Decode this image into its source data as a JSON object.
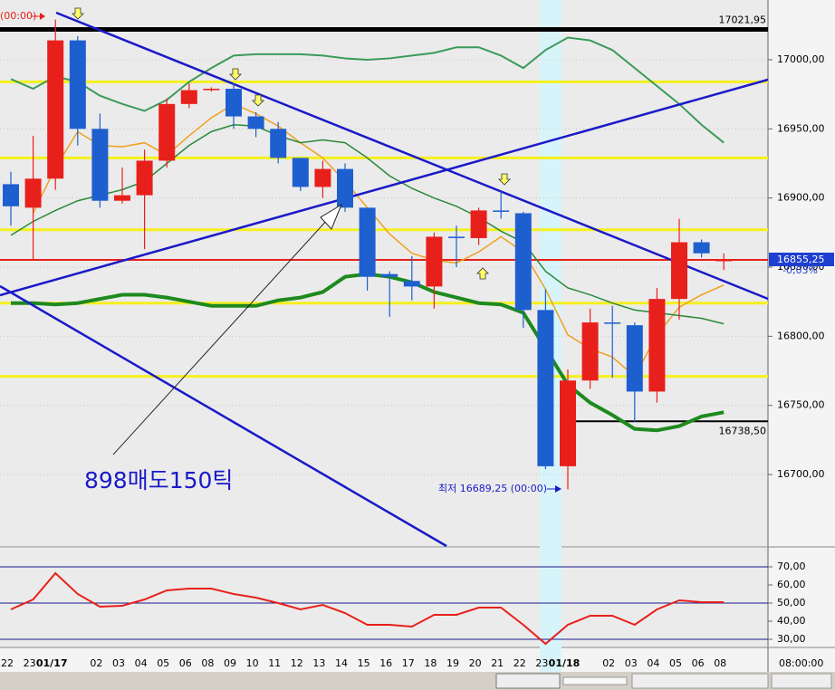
{
  "chart_data": [
    {
      "type": "candlestick",
      "open": [
        16910,
        16893,
        16914,
        17014,
        16950,
        16898,
        16902,
        16927,
        16968,
        16978,
        16979,
        16959,
        16950,
        16929,
        16908,
        16921,
        16893,
        16845,
        16840,
        16836,
        16872,
        16871,
        16891,
        16889,
        16819,
        16706,
        16768,
        16810,
        16808,
        16760,
        16827,
        16868,
        16855
      ],
      "high": [
        16919,
        16945,
        17029,
        17017,
        16961,
        16922,
        16935,
        16972,
        16983,
        16980,
        16983,
        16962,
        16955,
        16929,
        16927,
        16925,
        16893,
        16847,
        16858,
        16875,
        16880,
        16893,
        16905,
        16890,
        16834,
        16776,
        16820,
        16822,
        16810,
        16835,
        16885,
        16870,
        16860
      ],
      "low": [
        16880,
        16855,
        16906,
        16938,
        16893,
        16896,
        16863,
        16922,
        16965,
        16977,
        16950,
        16944,
        16925,
        16905,
        16900,
        16890,
        16833,
        16814,
        16826,
        16820,
        16850,
        16866,
        16885,
        16806,
        16704,
        16689.25,
        16762,
        16770,
        16738,
        16752,
        16812,
        16857,
        16848
      ],
      "close": [
        16894,
        16914,
        17014,
        16950,
        16898,
        16902,
        16927,
        16968,
        16978,
        16979,
        16959,
        16950,
        16929,
        16908,
        16921,
        16893,
        16843,
        16843,
        16836,
        16872,
        16871,
        16891,
        16890,
        16819,
        16706,
        16768,
        16810,
        16809,
        16760,
        16827,
        16868,
        16860,
        16855.25
      ],
      "up_color": "#e8201b",
      "down_color": "#1e5fcf",
      "overlays": [
        {
          "color": "#f0a020",
          "width": 1.5,
          "values": [
            null,
            16889,
            16922,
            16948,
            16938,
            16937,
            16940,
            16931,
            16945,
            16958,
            16968,
            16961,
            16952,
            16940,
            16929,
            16912,
            16893,
            16874,
            16860,
            16855,
            16853,
            16861,
            16872,
            16861,
            16834,
            16801,
            16791,
            16785,
            16771,
            16801,
            16821,
            16830,
            16837
          ]
        },
        {
          "color": "#3a9a5a",
          "width": 2,
          "values": [
            16986,
            16979,
            16988,
            16984,
            16974,
            16968,
            16963,
            16971,
            16984,
            16994,
            17003,
            17004,
            17004,
            17004,
            17003,
            17001,
            17000,
            17001,
            17003,
            17005,
            17009,
            17009,
            17003,
            16994,
            17007,
            17016,
            17014,
            17007,
            16994,
            16981,
            16968,
            16953,
            16940
          ]
        },
        {
          "color": "#2a8a3a",
          "width": 1.5,
          "values": [
            16873,
            16883,
            16891,
            16898,
            16902,
            16906,
            16912,
            16925,
            16938,
            16948,
            16953,
            16952,
            16945,
            16940,
            16942,
            16940,
            16929,
            16916,
            16907,
            16900,
            16894,
            16886,
            16876,
            16868,
            16847,
            16835,
            16830,
            16824,
            16819,
            16817,
            16815,
            16813,
            16809
          ]
        },
        {
          "color": "#1e8a1e",
          "width": 4,
          "values": [
            16824,
            16824,
            16823,
            16824,
            16827,
            16830,
            16830,
            16828,
            16825,
            16822,
            16822,
            16822,
            16826,
            16828,
            16832,
            16843,
            16845,
            16843,
            16839,
            16832,
            16828,
            16824,
            16823,
            16817,
            16791,
            16765,
            16752,
            16743,
            16733,
            16732,
            16735,
            16742,
            16745
          ]
        }
      ],
      "levels": [
        16984,
        16929,
        16877,
        16824,
        16771
      ],
      "level_color": "#f5f01e",
      "price_lines": [
        {
          "value": 17021.95,
          "label": "17021,95",
          "color": "#000000"
        },
        {
          "value": 16855.25,
          "label": "16855,25",
          "change": "-0,03%",
          "color": "#e8201b"
        },
        {
          "value": 16738.5,
          "label": "16738,50",
          "color": "#000000"
        }
      ],
      "ylim": [
        16648.3,
        17043.2
      ],
      "yticks": [
        {
          "value": 16700,
          "label": "16700,00"
        },
        {
          "value": 16750,
          "label": "16750,00"
        },
        {
          "value": 16800,
          "label": "16800,00"
        },
        {
          "value": 16850,
          "label": "16850,00"
        },
        {
          "value": 16900,
          "label": "16900,00"
        },
        {
          "value": 16950,
          "label": "16950,00"
        },
        {
          "value": 17000,
          "label": "17000,00"
        }
      ],
      "grid": true,
      "note": "898매도150틱",
      "low_note": "최저 16689,25 (00:00)",
      "time_note": "(00:00)"
    },
    {
      "type": "line",
      "categories": [
        "22",
        "23",
        "01/17",
        null,
        "02",
        "03",
        "04",
        "05",
        "06",
        "08",
        "09",
        "10",
        "11",
        "12",
        "13",
        "14",
        "15",
        "16",
        "17",
        "18",
        "19",
        "20",
        "21",
        "22",
        "23",
        "01/18",
        null,
        "02",
        "03",
        "04",
        "05",
        "06",
        "08"
      ],
      "series": [
        {
          "color": "#e8201b",
          "values": [
            46.5,
            52,
            66.5,
            55,
            48,
            48.5,
            52,
            57,
            58,
            58,
            55,
            53,
            50,
            46.5,
            49,
            44.5,
            38,
            38,
            37,
            43.5,
            43.5,
            47.5,
            47.5,
            38,
            27.5,
            38,
            43,
            43,
            38,
            46.5,
            51.5,
            50.5,
            50.5
          ]
        }
      ],
      "ref_lines": [
        30,
        50,
        70
      ],
      "ref_color": "#1a1a8c",
      "ylim": [
        25.5,
        80.5
      ],
      "yticks": [
        {
          "value": 30,
          "label": "30,00"
        },
        {
          "value": 40,
          "label": "40,00"
        },
        {
          "value": 50,
          "label": "50,00"
        },
        {
          "value": 60,
          "label": "60,00"
        },
        {
          "value": 70,
          "label": "70,00"
        }
      ],
      "time_label": "08:00:00"
    }
  ]
}
